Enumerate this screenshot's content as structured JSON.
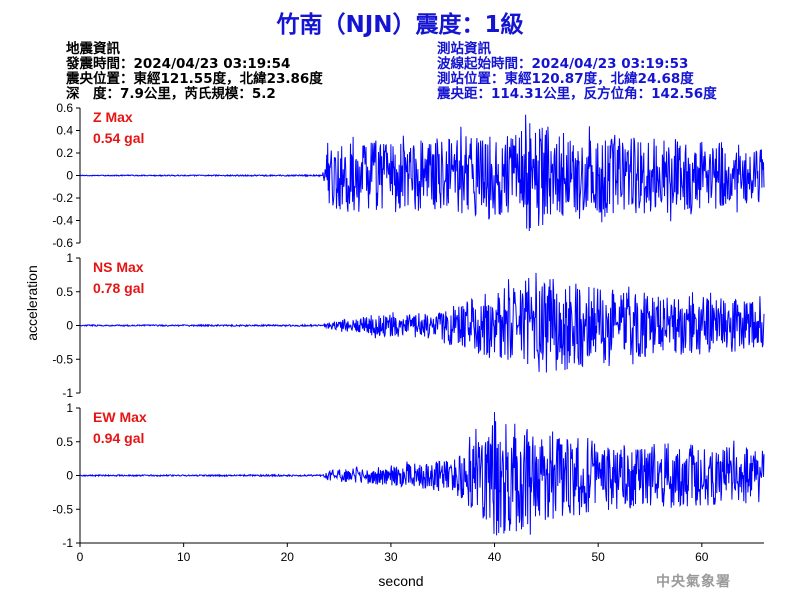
{
  "title": "竹南（NJN）震度：1級",
  "quake_info": {
    "heading": "地震資訊",
    "origin_time": "發震時間：2024/04/23 03:19:54",
    "epicenter": "震央位置：東經121.55度，北緯23.86度",
    "depth_magnitude": "深　度：7.9公里，芮氏規模：5.2"
  },
  "station_info": {
    "heading": "測站資訊",
    "wave_start": "波線起始時間：2024/04/23 03:19:53",
    "location": "測站位置：東經120.87度，北緯24.68度",
    "distance": "震央距：114.31公里，反方位角：142.56度"
  },
  "agency": "中央氣象署",
  "colors": {
    "title": "#1414d2",
    "trace": "#0000ff",
    "max_label": "#e61414",
    "agency": "#9a9a9a"
  },
  "chart_data": {
    "type": "line",
    "xlabel": "second",
    "ylabel": "acceleration",
    "xlim": [
      0,
      66
    ],
    "x_ticks": [
      "0",
      "10",
      "20",
      "30",
      "40",
      "50",
      "60"
    ],
    "grid": false,
    "sample_interval_s": 0.05,
    "panels": [
      {
        "name": "Z",
        "max_title": "Z Max",
        "max_value": "0.54 gal",
        "peak": 0.54,
        "ylim": [
          -0.6,
          0.6
        ],
        "y_ticks": [
          "0.6",
          "0.4",
          "0.2",
          "0",
          "-0.2",
          "-0.4",
          "-0.6"
        ],
        "envelope": [
          {
            "t": 0,
            "amp": 0.004
          },
          {
            "t": 23.4,
            "amp": 0.006
          },
          {
            "t": 24,
            "amp": 0.35
          },
          {
            "t": 30,
            "amp": 0.3
          },
          {
            "t": 38,
            "amp": 0.36
          },
          {
            "t": 42,
            "amp": 0.4
          },
          {
            "t": 43,
            "amp": 0.54
          },
          {
            "t": 46,
            "amp": 0.4
          },
          {
            "t": 55,
            "amp": 0.34
          },
          {
            "t": 62,
            "amp": 0.3
          },
          {
            "t": 66,
            "amp": 0.24
          }
        ]
      },
      {
        "name": "NS",
        "max_title": "NS Max",
        "max_value": "0.78 gal",
        "peak": 0.78,
        "ylim": [
          -1,
          1
        ],
        "y_ticks": [
          "1",
          "0.5",
          "0",
          "-0.5",
          "-1"
        ],
        "envelope": [
          {
            "t": 0,
            "amp": 0.01
          },
          {
            "t": 23.4,
            "amp": 0.012
          },
          {
            "t": 24,
            "amp": 0.05
          },
          {
            "t": 28,
            "amp": 0.15
          },
          {
            "t": 34,
            "amp": 0.2
          },
          {
            "t": 38,
            "amp": 0.42
          },
          {
            "t": 42,
            "amp": 0.62
          },
          {
            "t": 44,
            "amp": 0.78
          },
          {
            "t": 50,
            "amp": 0.55
          },
          {
            "t": 58,
            "amp": 0.45
          },
          {
            "t": 66,
            "amp": 0.36
          }
        ]
      },
      {
        "name": "EW",
        "max_title": "EW Max",
        "max_value": "0.94 gal",
        "peak": 0.94,
        "ylim": [
          -1,
          1
        ],
        "y_ticks": [
          "1",
          "0.5",
          "0",
          "-0.5",
          "-1"
        ],
        "envelope": [
          {
            "t": 0,
            "amp": 0.01
          },
          {
            "t": 23.4,
            "amp": 0.012
          },
          {
            "t": 24,
            "amp": 0.08
          },
          {
            "t": 30,
            "amp": 0.15
          },
          {
            "t": 36,
            "amp": 0.25
          },
          {
            "t": 38.5,
            "amp": 0.6
          },
          {
            "t": 40,
            "amp": 0.94
          },
          {
            "t": 43,
            "amp": 0.78
          },
          {
            "t": 50,
            "amp": 0.52
          },
          {
            "t": 58,
            "amp": 0.48
          },
          {
            "t": 66,
            "amp": 0.4
          }
        ]
      }
    ]
  }
}
